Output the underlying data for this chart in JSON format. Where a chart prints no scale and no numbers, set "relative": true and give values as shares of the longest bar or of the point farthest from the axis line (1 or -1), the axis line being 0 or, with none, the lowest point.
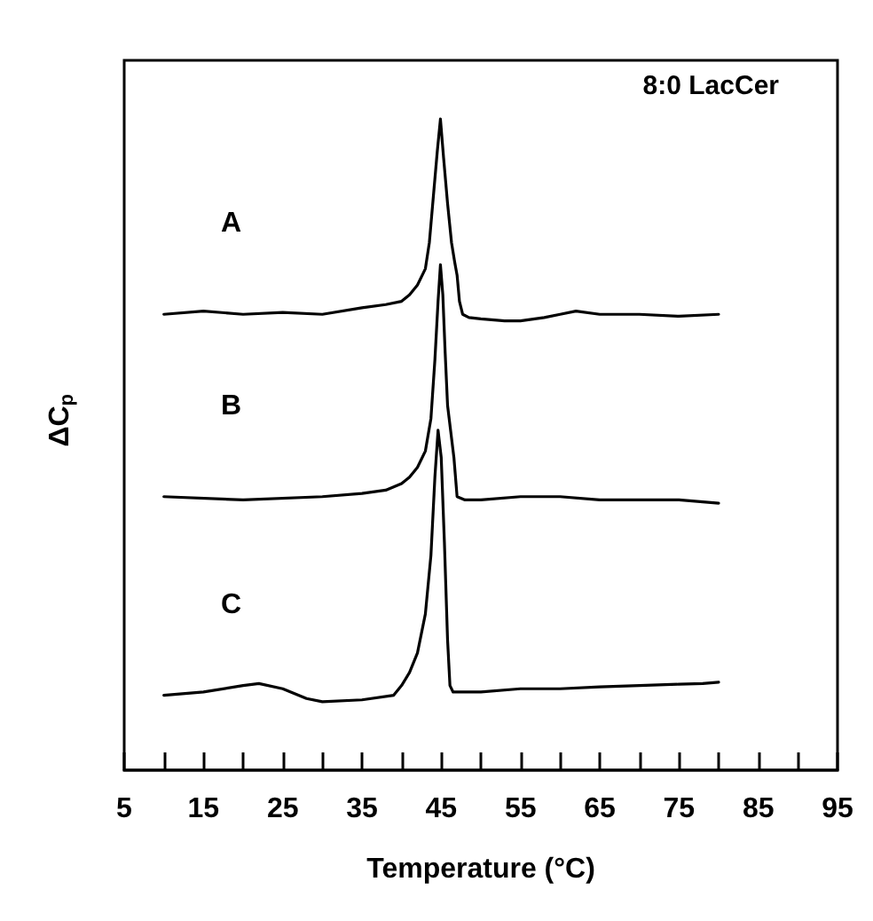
{
  "chart_data": {
    "type": "line",
    "title": "8:0 LacCer",
    "xlabel": "Temperature (°C)",
    "ylabel": "ΔC$_{p}$",
    "relative": true,
    "xlim": [
      5,
      95
    ],
    "xticks": [
      5,
      {
        "value": 10,
        "label": null
      },
      15,
      {
        "value": 20,
        "label": null
      },
      25,
      {
        "value": 30,
        "label": null
      },
      35,
      {
        "value": 40,
        "label": null
      },
      45,
      {
        "value": 50,
        "label": null
      },
      55,
      {
        "value": 60,
        "label": null
      },
      65,
      {
        "value": 70,
        "label": null
      },
      75,
      {
        "value": 80,
        "label": null
      },
      85,
      {
        "value": 90,
        "label": null
      },
      95
    ],
    "grid": false,
    "legend": false,
    "marker": "none",
    "line_style": "solid",
    "series": [
      {
        "name": "A",
        "color": "#000000",
        "x": [
          10,
          15,
          20,
          25,
          30,
          35,
          38,
          40,
          41,
          42,
          43,
          43.5,
          44,
          44.5,
          44.9,
          45.3,
          45.8,
          46.3,
          46.7,
          47,
          47.3,
          47.7,
          48.5,
          50,
          53,
          55,
          58,
          60,
          62,
          65,
          70,
          75,
          80
        ],
        "values": [
          0.7,
          0.705,
          0.7,
          0.703,
          0.7,
          0.71,
          0.715,
          0.72,
          0.73,
          0.745,
          0.77,
          0.81,
          0.88,
          0.95,
          1,
          0.94,
          0.87,
          0.81,
          0.78,
          0.76,
          0.72,
          0.7,
          0.695,
          0.693,
          0.69,
          0.69,
          0.695,
          0.7,
          0.705,
          0.7,
          0.7,
          0.697,
          0.7
        ]
      },
      {
        "name": "B",
        "color": "#000000",
        "x": [
          10,
          20,
          30,
          35,
          38,
          40,
          41,
          42,
          43,
          43.7,
          44.2,
          44.6,
          44.9,
          45.2,
          45.5,
          45.8,
          46.2,
          46.6,
          47,
          48,
          50,
          55,
          60,
          65,
          70,
          75,
          80
        ],
        "values": [
          0.42,
          0.415,
          0.42,
          0.425,
          0.43,
          0.44,
          0.45,
          0.465,
          0.49,
          0.54,
          0.63,
          0.72,
          0.776,
          0.73,
          0.64,
          0.56,
          0.52,
          0.48,
          0.42,
          0.415,
          0.415,
          0.42,
          0.42,
          0.415,
          0.415,
          0.415,
          0.41
        ]
      },
      {
        "name": "C",
        "color": "#000000",
        "x": [
          10,
          15,
          20,
          22,
          25,
          28,
          30,
          35,
          39,
          40,
          41,
          42,
          43,
          43.7,
          44.2,
          44.6,
          45,
          45.4,
          45.8,
          46.1,
          46.5,
          50,
          55,
          60,
          65,
          70,
          75,
          78,
          80
        ],
        "values": [
          0.115,
          0.12,
          0.13,
          0.133,
          0.125,
          0.11,
          0.105,
          0.108,
          0.115,
          0.13,
          0.15,
          0.18,
          0.24,
          0.33,
          0.45,
          0.522,
          0.48,
          0.35,
          0.2,
          0.13,
          0.12,
          0.12,
          0.125,
          0.125,
          0.128,
          0.13,
          0.132,
          0.133,
          0.135
        ]
      }
    ]
  }
}
